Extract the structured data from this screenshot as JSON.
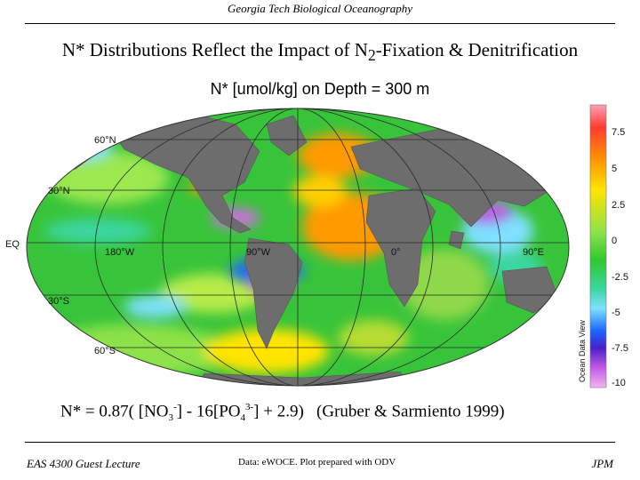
{
  "header": {
    "text": "Georgia Tech Biological Oceanography"
  },
  "slide": {
    "title_pre": "N* Distributions Reflect the Impact of N",
    "title_sub": "2",
    "title_post": "-Fixation & Denitrification"
  },
  "map": {
    "title": "N* [umol/kg] on Depth = 300 m",
    "lat_labels": [
      "60°N",
      "30°N",
      "EQ",
      "30°S",
      "60°S"
    ],
    "lon_labels": [
      "180°W",
      "90°W",
      "0°",
      "90°E"
    ],
    "colorbar": {
      "ticks": [
        "7.5",
        "5",
        "2.5",
        "0",
        "-2.5",
        "-5",
        "-7.5",
        "-10"
      ],
      "label": "Ocean Data View",
      "colors": [
        "#ff9fb5",
        "#ff3b30",
        "#ff9a00",
        "#ffe400",
        "#8ee24a",
        "#2fc82f",
        "#3bd6a0",
        "#7fe0ff",
        "#1a66ff",
        "#4b1fc8",
        "#c259e6",
        "#f2b4f2"
      ]
    },
    "land_color": "#6d6d6d",
    "grid_color": "#2a2a2a"
  },
  "formula": {
    "p1": "N* = 0.87( [NO",
    "s1": "3",
    "sp1": "-",
    "p2": "] - 16[PO",
    "s2": "4",
    "sp2": "3-",
    "p3": "] + 2.9)",
    "cite": "(Gruber & Sarmiento 1999)"
  },
  "footer": {
    "left": "EAS 4300 Guest Lecture",
    "center": "Data: eWOCE.  Plot prepared with ODV",
    "right": "JPM"
  }
}
